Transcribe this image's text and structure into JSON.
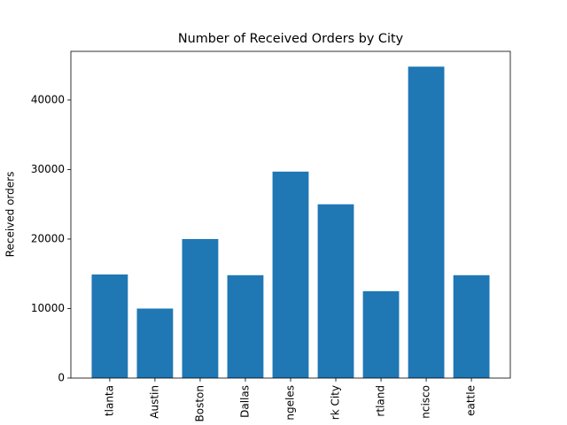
{
  "chart_data": {
    "type": "bar",
    "title": "Number of Received Orders by City",
    "y_label": "Received orders",
    "categories": [
      "tlanta",
      "Austin",
      "Boston",
      "Dallas",
      "ngeles",
      "rk City",
      "rtland",
      "ncisco",
      "eattle"
    ],
    "values": [
      14900,
      10000,
      20000,
      14800,
      29700,
      25000,
      12500,
      44800,
      14800
    ],
    "color": "#1f77b4",
    "ylim": [
      0,
      47000
    ],
    "yticks": [
      0,
      10000,
      20000,
      30000,
      40000
    ],
    "grid": false
  }
}
